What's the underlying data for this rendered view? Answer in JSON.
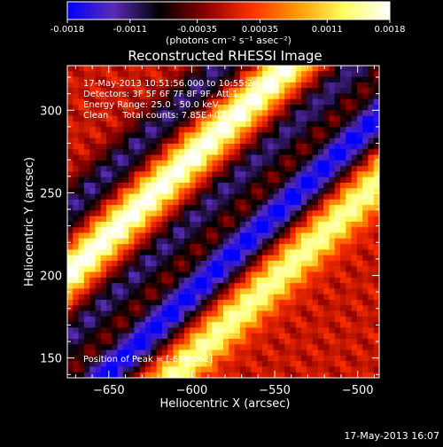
{
  "chart_data": {
    "type": "heatmap",
    "title": "Reconstructed RHESSI Image",
    "xlabel": "Heliocentric X (arcsec)",
    "ylabel": "Heliocentric Y (arcsec)",
    "xlim": [
      -675,
      -487
    ],
    "ylim": [
      138,
      327
    ],
    "xticks": [
      -650,
      -600,
      -550,
      -500
    ],
    "yticks": [
      150,
      200,
      250,
      300
    ],
    "colorbar": {
      "ticks": [
        -0.0018,
        -0.0011,
        -0.00035,
        0.00035,
        0.0011,
        0.0018
      ],
      "tick_labels": [
        "-0.0018",
        "-0.0011",
        "-0.00035",
        "0.00035",
        "0.0011",
        "0.0018"
      ],
      "label": "(photons cm⁻² s⁻¹ asec⁻²)",
      "range": [
        -0.0018,
        0.0018
      ],
      "colors": [
        "#0000ff",
        "#5a2bb8",
        "#000000",
        "#8b0000",
        "#ff3000",
        "#ff9a00",
        "#ffff60",
        "#ffffff"
      ]
    },
    "annotations": [
      "17-May-2013 10:51:56.000 to 10:55:26.000",
      "Detectors: 3F 5F 6F 7F 8F 9F, Att 1",
      "Energy Range: 25.0 - 50.0 keV",
      "Clean     Total counts: 7.85E+03"
    ],
    "peak_label": "Position of Peak = [-610,262]",
    "peak": [
      -610,
      262
    ],
    "stripe_model": {
      "direction": "diagonal, rising to the upper right",
      "bands": [
        {
          "intercept_y_at_x_minus600": 262,
          "value": 0.0018
        },
        {
          "intercept_y_at_x_minus600": 222,
          "value": -0.0011
        },
        {
          "intercept_y_at_x_minus600": 300,
          "value": -0.0011
        },
        {
          "intercept_y_at_x_minus600": 180,
          "value": -0.0018
        },
        {
          "intercept_y_at_x_minus600": 140,
          "value": 0.0015
        }
      ]
    }
  },
  "footer_timestamp": "17-May-2013 16:07"
}
